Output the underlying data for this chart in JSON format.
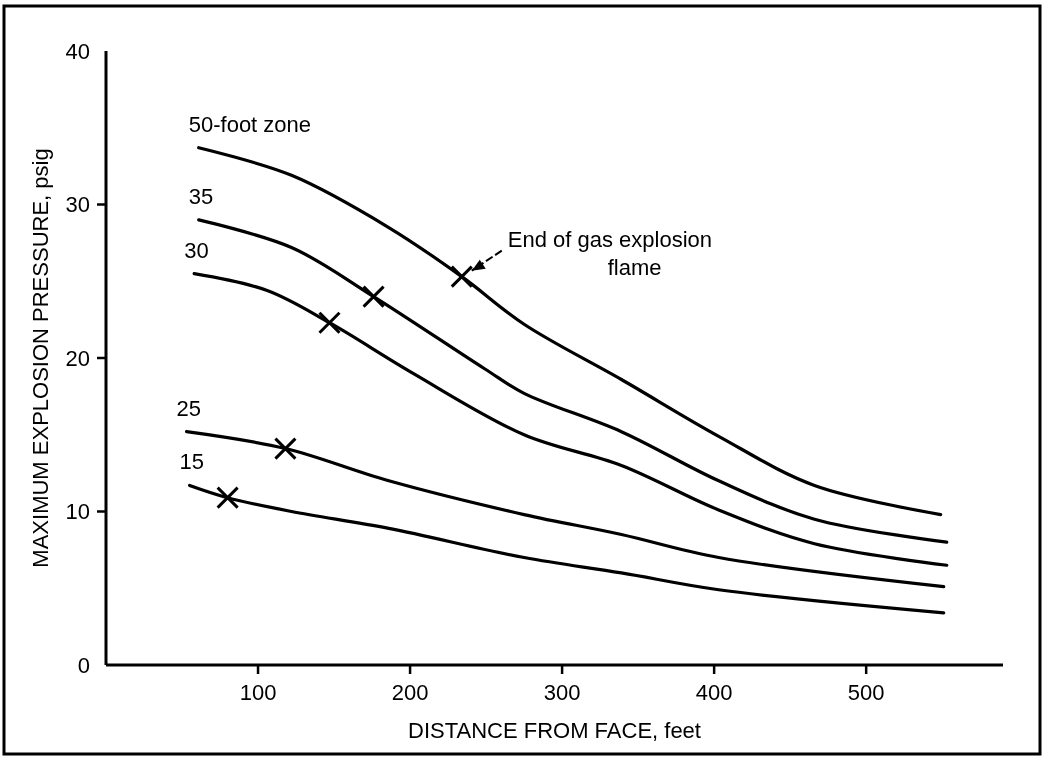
{
  "chart_data": {
    "type": "line",
    "xlabel": "DISTANCE FROM FACE, feet",
    "ylabel": "MAXIMUM EXPLOSION PRESSURE, psig",
    "xlim": [
      0,
      590
    ],
    "ylim": [
      0,
      40
    ],
    "xticks": [
      100,
      200,
      300,
      400,
      500
    ],
    "yticks": [
      0,
      10,
      20,
      30,
      40
    ],
    "grid": false,
    "line_style": "solid",
    "marker": "none",
    "series": [
      {
        "name": "50-foot zone",
        "color": "#000000",
        "x": [
          61,
          122,
          186,
          234,
          275,
          339,
          403,
          466,
          549
        ],
        "values": [
          33.7,
          31.9,
          28.5,
          25.3,
          22.2,
          18.6,
          14.9,
          11.7,
          9.8
        ]
      },
      {
        "name": "35",
        "color": "#000000",
        "x": [
          61,
          122,
          176,
          249,
          275,
          339,
          403,
          466,
          553
        ],
        "values": [
          29.0,
          27.2,
          24.0,
          19.3,
          17.7,
          15.2,
          12.0,
          9.5,
          8.0
        ]
      },
      {
        "name": "30",
        "color": "#000000",
        "x": [
          58,
          106,
          147,
          202,
          275,
          339,
          403,
          466,
          553
        ],
        "values": [
          25.5,
          24.4,
          22.3,
          19.0,
          15.0,
          13.0,
          10.1,
          7.9,
          6.5
        ]
      },
      {
        "name": "25",
        "color": "#000000",
        "x": [
          53,
          118,
          186,
          275,
          339,
          403,
          551
        ],
        "values": [
          15.2,
          14.1,
          12.0,
          9.8,
          8.5,
          7.0,
          5.1
        ]
      },
      {
        "name": "15",
        "color": "#000000",
        "x": [
          55,
          80,
          122,
          186,
          275,
          339,
          403,
          551
        ],
        "values": [
          11.7,
          10.9,
          10.0,
          8.9,
          7.0,
          6.0,
          4.9,
          3.4
        ]
      },
      {
        "type": "scatter",
        "marker": "cross",
        "color": "#000000",
        "x": [
          234,
          176,
          147,
          118,
          80
        ],
        "values": [
          25.3,
          24.0,
          22.3,
          14.1,
          10.9
        ]
      }
    ],
    "annotations": [
      {
        "text": "End of gas explosion flame",
        "x": 234,
        "y": 25.3
      }
    ]
  }
}
